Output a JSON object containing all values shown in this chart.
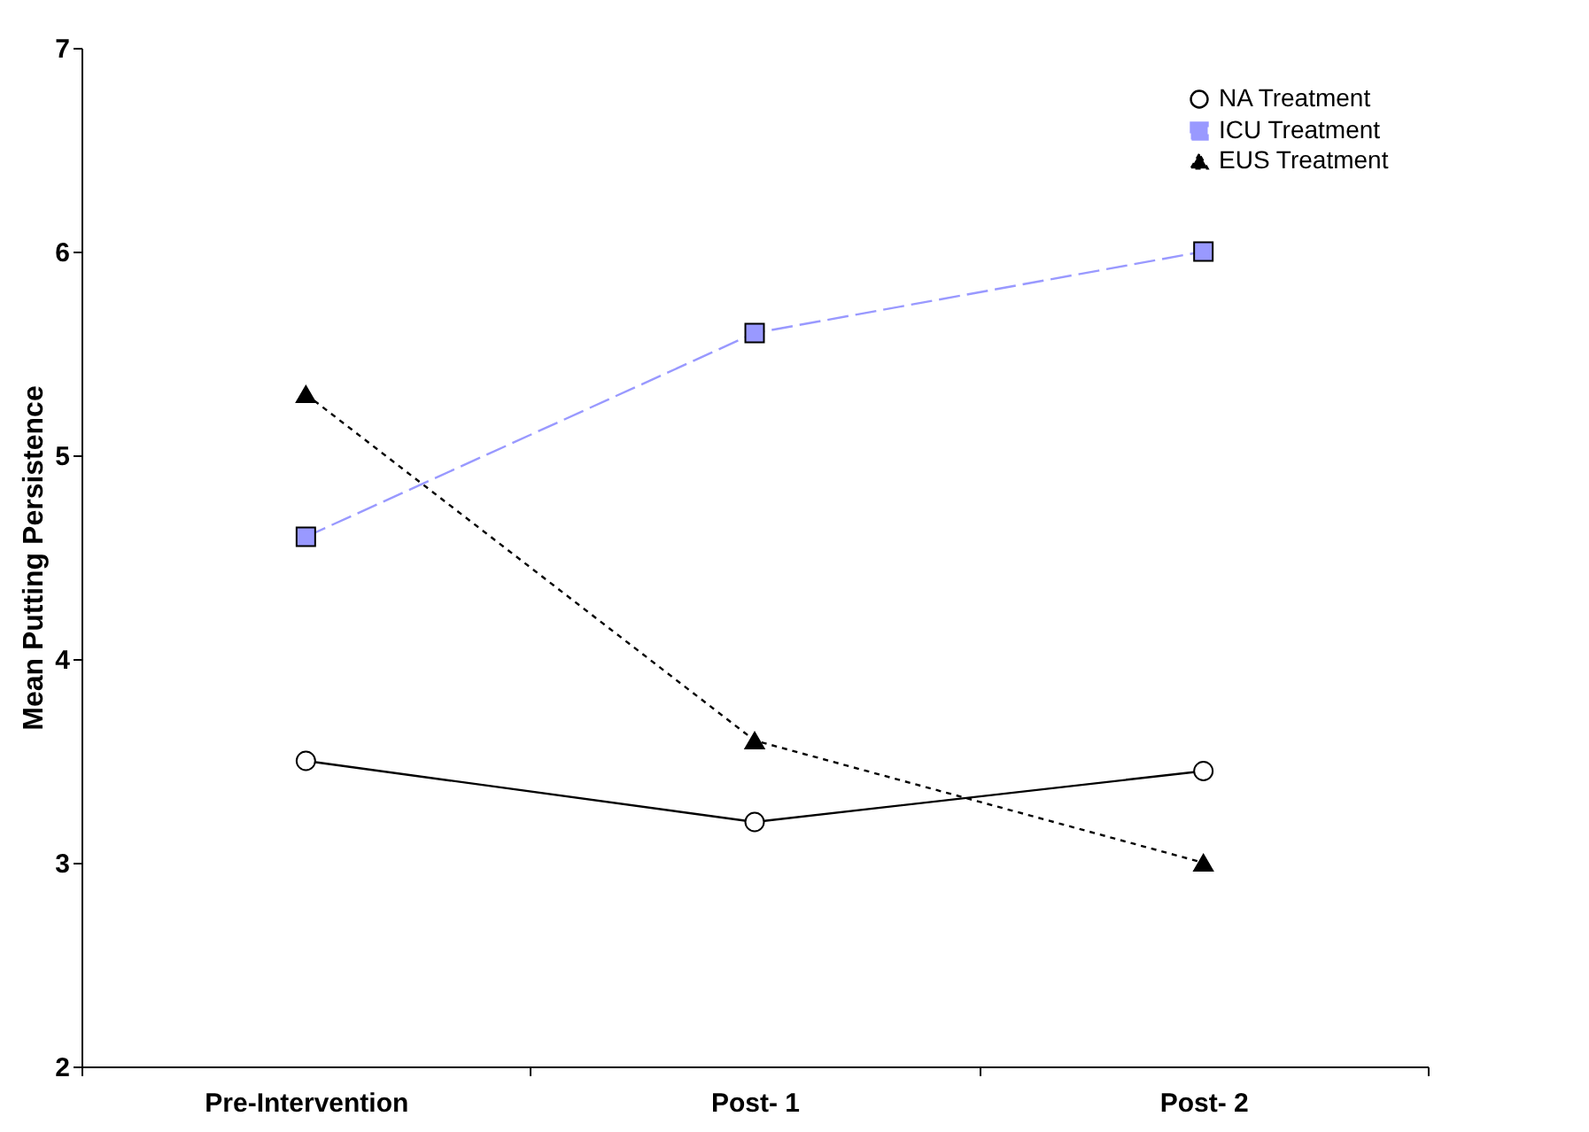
{
  "chart_data": {
    "type": "line",
    "ylabel": "Mean Putting Persistence",
    "categories": [
      "Pre-Intervention",
      "Post- 1",
      "Post- 2"
    ],
    "ylim": [
      2,
      7
    ],
    "yticks": [
      2,
      3,
      4,
      5,
      6,
      7
    ],
    "grid": false,
    "legend": "top right",
    "series": [
      {
        "name": "NA Treatment",
        "color": "#000000",
        "marker": "circle",
        "line_style": "solid",
        "values": [
          3.5,
          3.2,
          3.45
        ]
      },
      {
        "name": "ICU Treatment",
        "color": "#9999ff",
        "marker": "square",
        "line_style": "dashed",
        "values": [
          4.6,
          5.6,
          6.0
        ]
      },
      {
        "name": "EUS Treatment",
        "color": "#000000",
        "marker": "triangle",
        "line_style": "dotted",
        "values": [
          5.3,
          3.6,
          3.0
        ]
      }
    ]
  }
}
